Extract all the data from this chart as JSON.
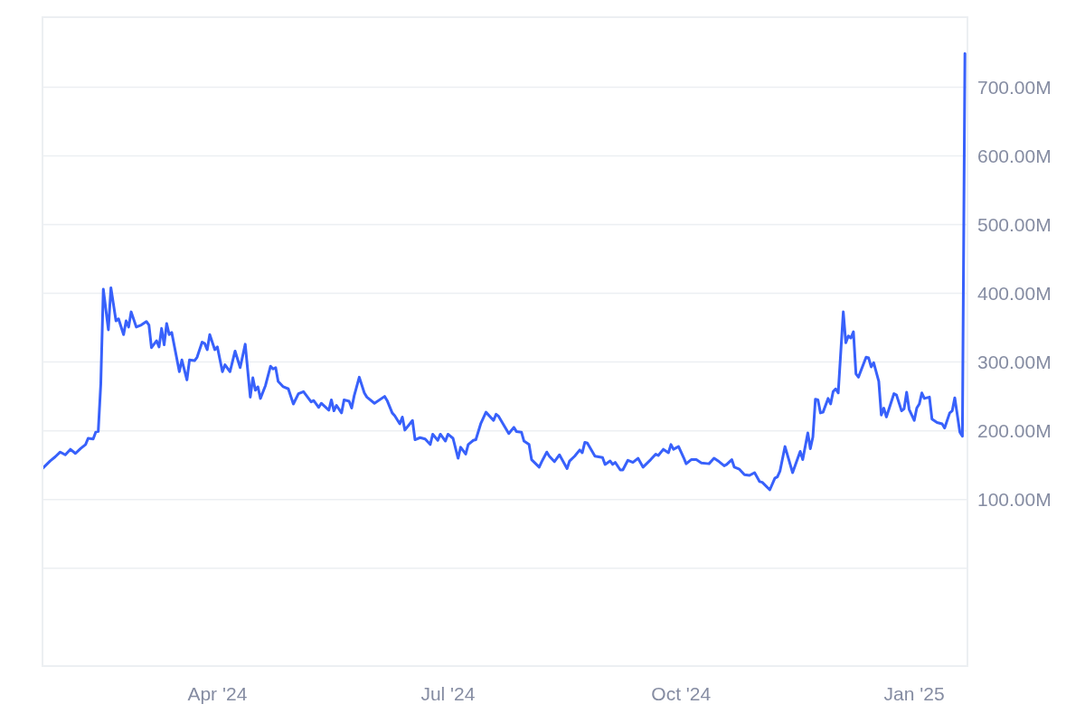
{
  "chart_data": {
    "type": "line",
    "color": "#3861fb",
    "grid": "y",
    "xlim": [
      "2024-01-23",
      "2025-01-22"
    ],
    "xticks": [
      {
        "value": "2024-04-01",
        "label": "Apr '24"
      },
      {
        "value": "2024-07-01",
        "label": "Jul '24"
      },
      {
        "value": "2024-10-01",
        "label": "Oct '24"
      },
      {
        "value": "2025-01-01",
        "label": "Jan '25"
      }
    ],
    "ylim": [
      -142.5,
      802
    ],
    "yticks": [
      {
        "value": 0,
        "label": null
      },
      {
        "value": 100,
        "label": "100.00M"
      },
      {
        "value": 200,
        "label": "200.00M"
      },
      {
        "value": 300,
        "label": "300.00M"
      },
      {
        "value": 400,
        "label": "400.00M"
      },
      {
        "value": 500,
        "label": "500.00M"
      },
      {
        "value": 600,
        "label": "600.00M"
      },
      {
        "value": 700,
        "label": "700.00M"
      }
    ],
    "x": [
      "2024-01-23",
      "2024-01-26",
      "2024-01-28",
      "2024-01-30",
      "2024-02-01",
      "2024-02-03",
      "2024-02-05",
      "2024-02-07",
      "2024-02-09",
      "2024-02-10",
      "2024-02-12",
      "2024-02-13",
      "2024-02-14",
      "2024-02-15",
      "2024-02-16",
      "2024-02-18",
      "2024-02-19",
      "2024-02-21",
      "2024-02-22",
      "2024-02-24",
      "2024-02-25",
      "2024-02-26",
      "2024-02-27",
      "2024-02-29",
      "2024-03-02",
      "2024-03-04",
      "2024-03-05",
      "2024-03-06",
      "2024-03-08",
      "2024-03-09",
      "2024-03-10",
      "2024-03-11",
      "2024-03-12",
      "2024-03-13",
      "2024-03-14",
      "2024-03-17",
      "2024-03-18",
      "2024-03-20",
      "2024-03-21",
      "2024-03-23",
      "2024-03-24",
      "2024-03-26",
      "2024-03-27",
      "2024-03-28",
      "2024-03-29",
      "2024-03-31",
      "2024-04-01",
      "2024-04-03",
      "2024-04-04",
      "2024-04-06",
      "2024-04-08",
      "2024-04-10",
      "2024-04-12",
      "2024-04-14",
      "2024-04-15",
      "2024-04-16",
      "2024-04-17",
      "2024-04-18",
      "2024-04-20",
      "2024-04-22",
      "2024-04-23",
      "2024-04-24",
      "2024-04-25",
      "2024-04-27",
      "2024-04-29",
      "2024-05-01",
      "2024-05-03",
      "2024-05-05",
      "2024-05-08",
      "2024-05-09",
      "2024-05-11",
      "2024-05-12",
      "2024-05-15",
      "2024-05-16",
      "2024-05-17",
      "2024-05-18",
      "2024-05-20",
      "2024-05-21",
      "2024-05-23",
      "2024-05-24",
      "2024-05-25",
      "2024-05-27",
      "2024-05-29",
      "2024-05-30",
      "2024-06-02",
      "2024-06-06",
      "2024-06-07",
      "2024-06-09",
      "2024-06-10",
      "2024-06-12",
      "2024-06-13",
      "2024-06-14",
      "2024-06-17",
      "2024-06-18",
      "2024-06-20",
      "2024-06-22",
      "2024-06-24",
      "2024-06-25",
      "2024-06-27",
      "2024-06-28",
      "2024-06-30",
      "2024-07-01",
      "2024-07-03",
      "2024-07-05",
      "2024-07-06",
      "2024-07-08",
      "2024-07-09",
      "2024-07-11",
      "2024-07-12",
      "2024-07-14",
      "2024-07-16",
      "2024-07-19",
      "2024-07-20",
      "2024-07-21",
      "2024-07-25",
      "2024-07-27",
      "2024-07-28",
      "2024-07-30",
      "2024-07-31",
      "2024-08-02",
      "2024-08-03",
      "2024-08-06",
      "2024-08-07",
      "2024-08-09",
      "2024-08-10",
      "2024-08-12",
      "2024-08-14",
      "2024-08-17",
      "2024-08-18",
      "2024-08-20",
      "2024-08-22",
      "2024-08-23",
      "2024-08-24",
      "2024-08-25",
      "2024-08-28",
      "2024-08-31",
      "2024-09-01",
      "2024-09-03",
      "2024-09-04",
      "2024-09-05",
      "2024-09-07",
      "2024-09-08",
      "2024-09-10",
      "2024-09-12",
      "2024-09-14",
      "2024-09-16",
      "2024-09-19",
      "2024-09-21",
      "2024-09-22",
      "2024-09-24",
      "2024-09-26",
      "2024-09-27",
      "2024-09-28",
      "2024-09-30",
      "2024-10-02",
      "2024-10-03",
      "2024-10-05",
      "2024-10-07",
      "2024-10-09",
      "2024-10-12",
      "2024-10-14",
      "2024-10-16",
      "2024-10-18",
      "2024-10-19",
      "2024-10-21",
      "2024-10-22",
      "2024-10-24",
      "2024-10-26",
      "2024-10-28",
      "2024-10-30",
      "2024-11-01",
      "2024-11-02",
      "2024-11-05",
      "2024-11-07",
      "2024-11-08",
      "2024-11-09",
      "2024-11-11",
      "2024-11-14",
      "2024-11-17",
      "2024-11-18",
      "2024-11-20",
      "2024-11-21",
      "2024-11-22",
      "2024-11-23",
      "2024-11-24",
      "2024-11-25",
      "2024-11-26",
      "2024-11-28",
      "2024-11-29",
      "2024-11-30",
      "2024-12-01",
      "2024-12-02",
      "2024-12-04",
      "2024-12-05",
      "2024-12-06",
      "2024-12-07",
      "2024-12-08",
      "2024-12-09",
      "2024-12-10",
      "2024-12-13",
      "2024-12-14",
      "2024-12-15",
      "2024-12-16",
      "2024-12-18",
      "2024-12-19",
      "2024-12-20",
      "2024-12-21",
      "2024-12-24",
      "2024-12-25",
      "2024-12-27",
      "2024-12-28",
      "2024-12-29",
      "2024-12-30",
      "2025-01-01",
      "2025-01-02",
      "2025-01-03",
      "2025-01-04",
      "2025-01-05",
      "2025-01-07",
      "2025-01-08",
      "2025-01-10",
      "2025-01-12",
      "2025-01-13",
      "2025-01-15",
      "2025-01-16",
      "2025-01-17",
      "2025-01-19",
      "2025-01-20",
      "2025-01-21"
    ],
    "values": [
      145,
      156,
      162,
      169,
      165,
      173,
      167,
      174,
      180,
      189,
      188,
      198,
      199,
      268,
      406,
      347,
      408,
      360,
      363,
      340,
      360,
      351,
      373,
      351,
      354,
      359,
      354,
      321,
      331,
      322,
      349,
      325,
      356,
      340,
      343,
      286,
      303,
      274,
      303,
      302,
      307,
      329,
      327,
      318,
      340,
      318,
      322,
      286,
      296,
      286,
      316,
      292,
      326,
      249,
      277,
      259,
      264,
      247,
      266,
      294,
      290,
      292,
      272,
      264,
      261,
      239,
      254,
      257,
      242,
      244,
      234,
      240,
      230,
      245,
      229,
      237,
      226,
      245,
      243,
      233,
      251,
      278,
      255,
      249,
      240,
      250,
      244,
      226,
      222,
      210,
      220,
      201,
      215,
      187,
      190,
      188,
      180,
      195,
      186,
      195,
      185,
      195,
      189,
      160,
      176,
      166,
      180,
      186,
      187,
      211,
      227,
      215,
      224,
      221,
      196,
      205,
      199,
      198,
      185,
      180,
      158,
      147,
      155,
      169,
      163,
      155,
      165,
      145,
      156,
      163,
      172,
      168,
      183,
      182,
      163,
      161,
      151,
      156,
      151,
      154,
      143,
      143,
      157,
      154,
      160,
      147,
      158,
      166,
      164,
      173,
      168,
      180,
      173,
      177,
      161,
      152,
      158,
      158,
      153,
      152,
      160,
      155,
      149,
      151,
      158,
      147,
      144,
      136,
      135,
      139,
      126,
      125,
      114,
      131,
      133,
      141,
      177,
      139,
      170,
      158,
      197,
      174,
      191,
      246,
      245,
      226,
      227,
      247,
      239,
      257,
      261,
      255,
      373,
      328,
      338,
      335,
      344,
      283,
      278,
      307,
      306,
      293,
      299,
      272,
      223,
      233,
      220,
      254,
      252,
      229,
      232,
      256,
      231,
      215,
      233,
      239,
      255,
      247,
      249,
      217,
      212,
      210,
      204,
      226,
      229,
      248,
      198,
      192,
      749
    ]
  }
}
